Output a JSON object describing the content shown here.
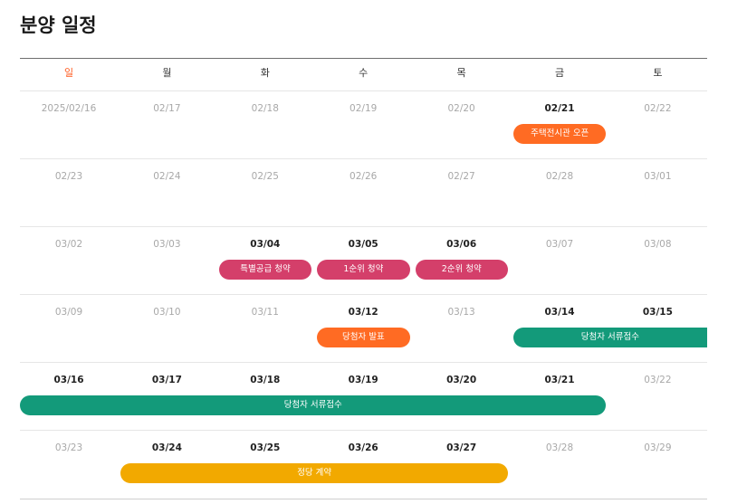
{
  "title": "분양 일정",
  "weekdays": [
    "일",
    "월",
    "화",
    "수",
    "목",
    "금",
    "토"
  ],
  "weeks": [
    {
      "days": [
        {
          "label": "2025/02/16",
          "active": false
        },
        {
          "label": "02/17",
          "active": false
        },
        {
          "label": "02/18",
          "active": false
        },
        {
          "label": "02/19",
          "active": false
        },
        {
          "label": "02/20",
          "active": false
        },
        {
          "label": "02/21",
          "active": true
        },
        {
          "label": "02/22",
          "active": false
        }
      ],
      "events": [
        {
          "label": "주택전시관 오픈",
          "color": "orange",
          "start": 5,
          "span": 1
        }
      ]
    },
    {
      "days": [
        {
          "label": "02/23",
          "active": false
        },
        {
          "label": "02/24",
          "active": false
        },
        {
          "label": "02/25",
          "active": false
        },
        {
          "label": "02/26",
          "active": false
        },
        {
          "label": "02/27",
          "active": false
        },
        {
          "label": "02/28",
          "active": false
        },
        {
          "label": "03/01",
          "active": false
        }
      ],
      "events": []
    },
    {
      "days": [
        {
          "label": "03/02",
          "active": false
        },
        {
          "label": "03/03",
          "active": false
        },
        {
          "label": "03/04",
          "active": true
        },
        {
          "label": "03/05",
          "active": true
        },
        {
          "label": "03/06",
          "active": true
        },
        {
          "label": "03/07",
          "active": false
        },
        {
          "label": "03/08",
          "active": false
        }
      ],
      "events": [
        {
          "label": "특별공급 청약",
          "color": "pink",
          "start": 2,
          "span": 1
        },
        {
          "label": "1순위 청약",
          "color": "pink",
          "start": 3,
          "span": 1
        },
        {
          "label": "2순위 청약",
          "color": "pink",
          "start": 4,
          "span": 1
        }
      ]
    },
    {
      "days": [
        {
          "label": "03/09",
          "active": false
        },
        {
          "label": "03/10",
          "active": false
        },
        {
          "label": "03/11",
          "active": false
        },
        {
          "label": "03/12",
          "active": true
        },
        {
          "label": "03/13",
          "active": false
        },
        {
          "label": "03/14",
          "active": true
        },
        {
          "label": "03/15",
          "active": true
        }
      ],
      "events": [
        {
          "label": "당첨자 발표",
          "color": "orange",
          "start": 3,
          "span": 1
        },
        {
          "label": "당첨자 서류접수",
          "color": "green",
          "start": 5,
          "span": 2,
          "continues": true
        }
      ]
    },
    {
      "days": [
        {
          "label": "03/16",
          "active": true
        },
        {
          "label": "03/17",
          "active": true
        },
        {
          "label": "03/18",
          "active": true
        },
        {
          "label": "03/19",
          "active": true
        },
        {
          "label": "03/20",
          "active": true
        },
        {
          "label": "03/21",
          "active": true
        },
        {
          "label": "03/22",
          "active": false
        }
      ],
      "events": [
        {
          "label": "당첨자 서류접수",
          "color": "green",
          "start": 0,
          "span": 6,
          "continued": true
        }
      ]
    },
    {
      "days": [
        {
          "label": "03/23",
          "active": false
        },
        {
          "label": "03/24",
          "active": true
        },
        {
          "label": "03/25",
          "active": true
        },
        {
          "label": "03/26",
          "active": true
        },
        {
          "label": "03/27",
          "active": true
        },
        {
          "label": "03/28",
          "active": false
        },
        {
          "label": "03/29",
          "active": false
        }
      ],
      "events": [
        {
          "label": "정당 계약",
          "color": "yellow",
          "start": 1,
          "span": 4
        }
      ]
    }
  ]
}
